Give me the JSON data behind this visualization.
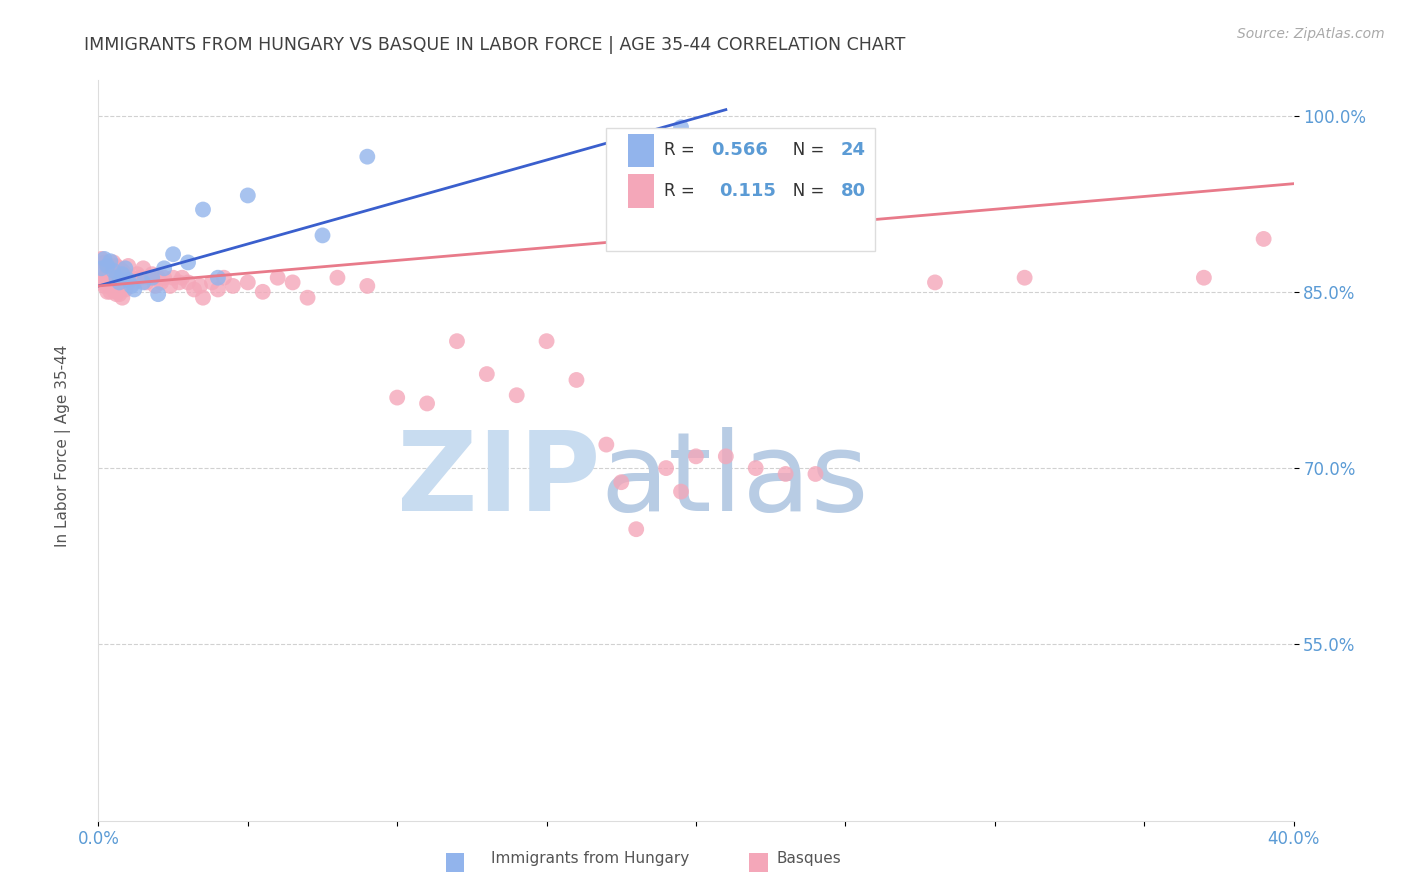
{
  "title": "IMMIGRANTS FROM HUNGARY VS BASQUE IN LABOR FORCE | AGE 35-44 CORRELATION CHART",
  "source": "Source: ZipAtlas.com",
  "ylabel": "In Labor Force | Age 35-44",
  "xlim": [
    0.0,
    0.4
  ],
  "ylim": [
    0.4,
    1.03
  ],
  "xtick_positions": [
    0.0,
    0.05,
    0.1,
    0.15,
    0.2,
    0.25,
    0.3,
    0.35,
    0.4
  ],
  "ytick_positions": [
    0.55,
    0.7,
    0.85,
    1.0
  ],
  "legend_hungary_R": "0.566",
  "legend_hungary_N": "24",
  "legend_basque_R": "0.115",
  "legend_basque_N": "80",
  "hungary_color": "#92b4ec",
  "basque_color": "#f4a7b9",
  "hungary_line_color": "#3a5fcd",
  "basque_line_color": "#e87a8a",
  "background_color": "#ffffff",
  "watermark_zip_color": "#c8dcf0",
  "watermark_atlas_color": "#b8cce4",
  "tick_label_color": "#5b9bd5",
  "title_color": "#404040",
  "source_color": "#aaaaaa",
  "ylabel_color": "#555555",
  "legend_text_color": "#333333",
  "legend_value_color": "#5b9bd5",
  "bottom_legend_color": "#555555",
  "hungary_x": [
    0.001,
    0.002,
    0.003,
    0.004,
    0.005,
    0.006,
    0.007,
    0.008,
    0.009,
    0.01,
    0.011,
    0.012,
    0.015,
    0.018,
    0.02,
    0.022,
    0.025,
    0.03,
    0.035,
    0.04,
    0.05,
    0.075,
    0.09,
    0.195
  ],
  "hungary_y": [
    0.87,
    0.878,
    0.872,
    0.876,
    0.868,
    0.862,
    0.858,
    0.865,
    0.87,
    0.86,
    0.855,
    0.852,
    0.858,
    0.862,
    0.848,
    0.87,
    0.882,
    0.875,
    0.92,
    0.862,
    0.932,
    0.898,
    0.965,
    0.99
  ],
  "basque_x": [
    0.001,
    0.001,
    0.001,
    0.002,
    0.002,
    0.002,
    0.003,
    0.003,
    0.003,
    0.004,
    0.004,
    0.004,
    0.005,
    0.005,
    0.005,
    0.006,
    0.006,
    0.006,
    0.007,
    0.007,
    0.007,
    0.008,
    0.008,
    0.008,
    0.009,
    0.009,
    0.01,
    0.01,
    0.011,
    0.012,
    0.013,
    0.014,
    0.015,
    0.016,
    0.017,
    0.018,
    0.019,
    0.02,
    0.021,
    0.022,
    0.024,
    0.025,
    0.027,
    0.028,
    0.03,
    0.032,
    0.034,
    0.035,
    0.038,
    0.04,
    0.042,
    0.045,
    0.05,
    0.055,
    0.06,
    0.065,
    0.07,
    0.08,
    0.09,
    0.1,
    0.11,
    0.12,
    0.13,
    0.14,
    0.15,
    0.16,
    0.17,
    0.175,
    0.18,
    0.19,
    0.195,
    0.2,
    0.21,
    0.22,
    0.23,
    0.24,
    0.28,
    0.31,
    0.37,
    0.39
  ],
  "basque_y": [
    0.878,
    0.865,
    0.858,
    0.875,
    0.862,
    0.855,
    0.87,
    0.858,
    0.85,
    0.872,
    0.86,
    0.85,
    0.875,
    0.862,
    0.852,
    0.872,
    0.858,
    0.848,
    0.87,
    0.858,
    0.848,
    0.868,
    0.858,
    0.845,
    0.865,
    0.852,
    0.872,
    0.858,
    0.862,
    0.858,
    0.865,
    0.862,
    0.87,
    0.858,
    0.862,
    0.865,
    0.855,
    0.862,
    0.858,
    0.862,
    0.855,
    0.862,
    0.858,
    0.862,
    0.858,
    0.852,
    0.855,
    0.845,
    0.858,
    0.852,
    0.862,
    0.855,
    0.858,
    0.85,
    0.862,
    0.858,
    0.845,
    0.862,
    0.855,
    0.76,
    0.755,
    0.808,
    0.78,
    0.762,
    0.808,
    0.775,
    0.72,
    0.688,
    0.648,
    0.7,
    0.68,
    0.71,
    0.71,
    0.7,
    0.695,
    0.695,
    0.858,
    0.862,
    0.862,
    0.895
  ],
  "hungary_trendline_x": [
    0.0,
    0.21
  ],
  "hungary_trendline_y": [
    0.855,
    1.005
  ],
  "basque_trendline_x": [
    0.0,
    0.4
  ],
  "basque_trendline_y": [
    0.855,
    0.942
  ]
}
